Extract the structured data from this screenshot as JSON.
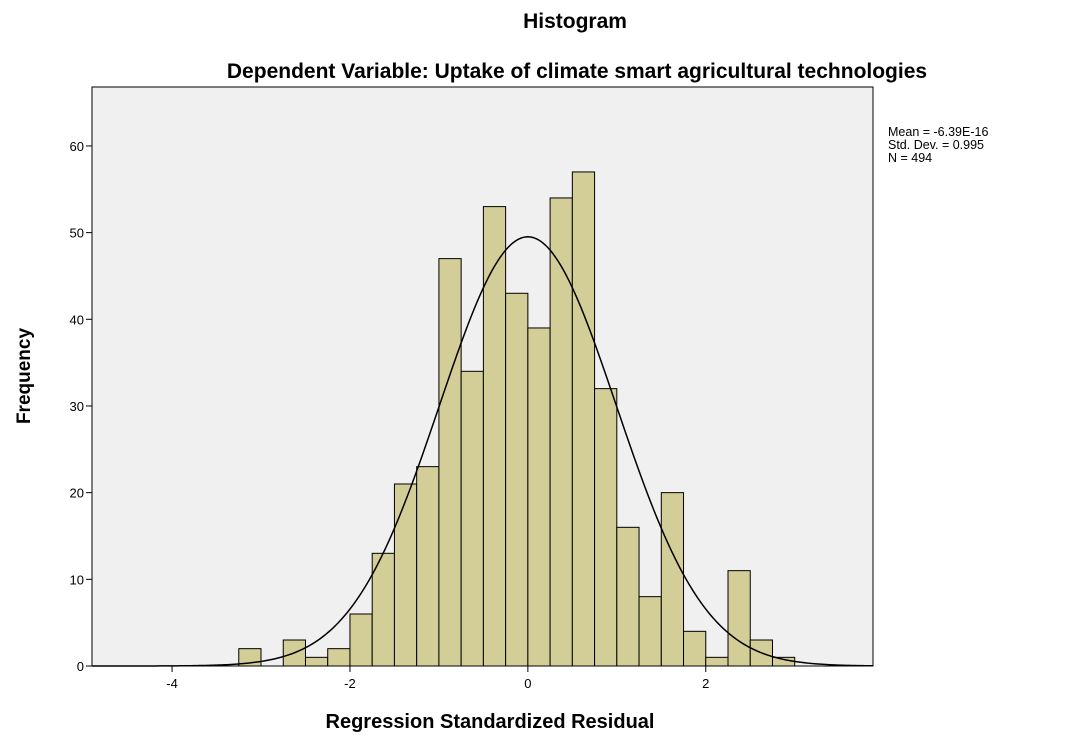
{
  "chart_data": {
    "type": "histogram",
    "title": "Histogram",
    "subtitle": "Dependent Variable: Uptake of climate smart agricultural technologies",
    "x_label": "Regression Standardized Residual",
    "y_label": "Frequency",
    "bins": [
      -3.25,
      -3,
      -2.75,
      -2.5,
      -2.25,
      -2,
      -1.75,
      -1.5,
      -1.25,
      -1,
      -0.75,
      -0.5,
      -0.25,
      0,
      0.25,
      0.5,
      0.75,
      1,
      1.25,
      1.5,
      1.75,
      2,
      2.25,
      2.5,
      2.75,
      3
    ],
    "counts": [
      2,
      0,
      3,
      1,
      2,
      6,
      13,
      21,
      23,
      47,
      34,
      53,
      43,
      39,
      54,
      57,
      32,
      16,
      8,
      20,
      4,
      1,
      11,
      3,
      1
    ],
    "color": "#d3ce97",
    "xlim": [
      -4.9,
      3.88
    ],
    "ylim": [
      0,
      66.8
    ],
    "xticks": [
      -4,
      -2,
      0,
      2
    ],
    "yticks": [
      0,
      10,
      20,
      30,
      40,
      50,
      60
    ],
    "stats": [
      {
        "value": -6.39e-16,
        "label": "Mean = -6.39E-16"
      },
      {
        "value": 0.995,
        "label": "Std. Dev. = 0.995"
      },
      {
        "value": 494,
        "label": "N = 494"
      }
    ]
  }
}
